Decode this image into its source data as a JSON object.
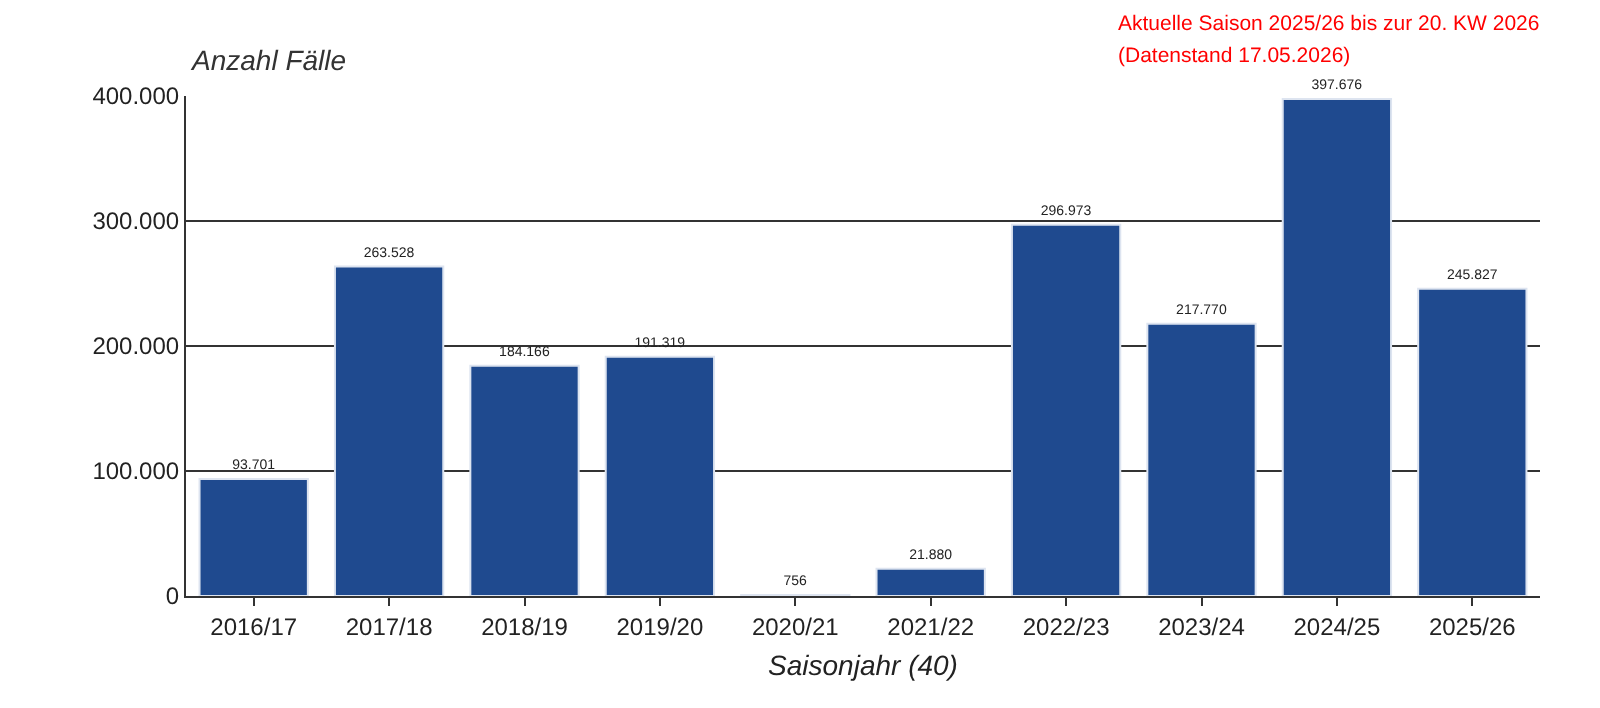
{
  "chart_data": {
    "type": "bar",
    "ylabel": "Anzahl Fälle",
    "xlabel": "Saisonjahr (40)",
    "annotations": [
      "Aktuelle Saison 2025/26 bis zur 20. KW 2026",
      "(Datenstand 17.05.2026)"
    ],
    "categories": [
      "2016/17",
      "2017/18",
      "2018/19",
      "2019/20",
      "2020/21",
      "2021/22",
      "2022/23",
      "2023/24",
      "2024/25",
      "2025/26"
    ],
    "values": [
      93701,
      263528,
      184166,
      191319,
      756,
      21880,
      296973,
      217770,
      397676,
      245827
    ],
    "value_labels": [
      "93.701",
      "263.528",
      "184.166",
      "191.319",
      "756",
      "21.880",
      "296.973",
      "217.770",
      "397.676",
      "245.827"
    ],
    "color": "#1f4a8f",
    "ylim": [
      0,
      400000
    ],
    "yticks": [
      {
        "value": 0,
        "label": "0"
      },
      {
        "value": 100000,
        "label": "100.000"
      },
      {
        "value": 200000,
        "label": "200.000"
      },
      {
        "value": 300000,
        "label": "300.000"
      },
      {
        "value": 400000,
        "label": "400.000"
      }
    ],
    "grid": "y",
    "legend": false
  }
}
